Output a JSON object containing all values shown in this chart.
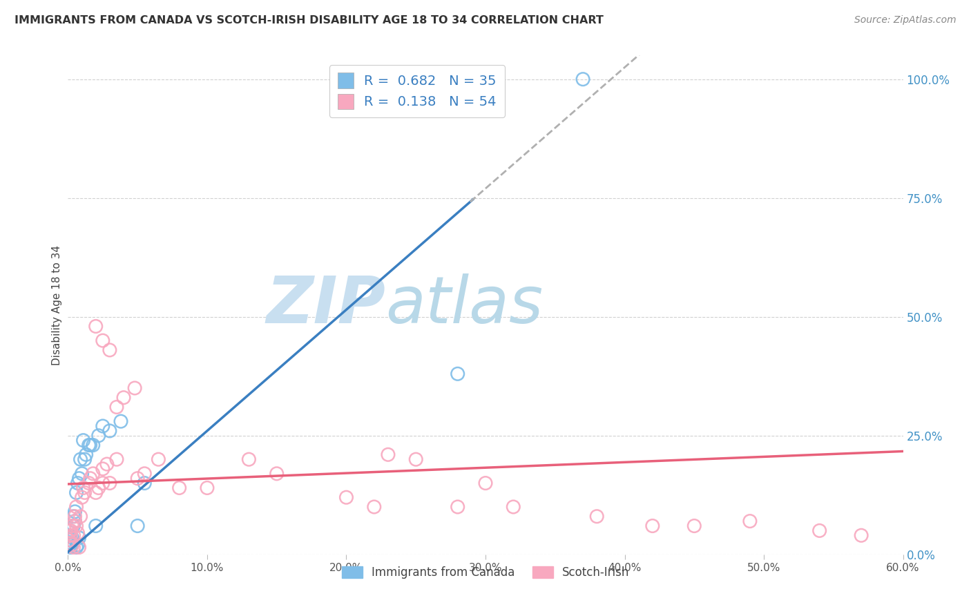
{
  "title": "IMMIGRANTS FROM CANADA VS SCOTCH-IRISH DISABILITY AGE 18 TO 34 CORRELATION CHART",
  "source_text": "Source: ZipAtlas.com",
  "ylabel": "Disability Age 18 to 34",
  "xmin": 0.0,
  "xmax": 0.6,
  "ymin": 0.0,
  "ymax": 1.05,
  "xtick_labels": [
    "0.0%",
    "10.0%",
    "20.0%",
    "30.0%",
    "40.0%",
    "50.0%",
    "60.0%"
  ],
  "xtick_vals": [
    0.0,
    0.1,
    0.2,
    0.3,
    0.4,
    0.5,
    0.6
  ],
  "ytick_labels": [
    "0.0%",
    "25.0%",
    "50.0%",
    "75.0%",
    "100.0%"
  ],
  "ytick_vals": [
    0.0,
    0.25,
    0.5,
    0.75,
    1.0
  ],
  "canada_color": "#7fbde8",
  "scotch_irish_color": "#f8a8bf",
  "canada_R": 0.682,
  "canada_N": 35,
  "scotch_irish_R": 0.138,
  "scotch_irish_N": 54,
  "legend_label_canada": "Immigrants from Canada",
  "legend_label_scotch": "Scotch-Irish",
  "watermark_zip": "ZIP",
  "watermark_atlas": "atlas",
  "watermark_zip_color": "#c8dff0",
  "watermark_atlas_color": "#b8d8e8",
  "canada_line_color": "#3a7fc1",
  "scotch_line_color": "#e8607a",
  "canada_extrapolation_color": "#b0b0b0",
  "canada_line_intercept": 0.005,
  "canada_line_slope": 2.55,
  "scotch_line_intercept": 0.148,
  "scotch_line_slope": 0.115,
  "canada_points_x": [
    0.001,
    0.001,
    0.001,
    0.002,
    0.002,
    0.002,
    0.003,
    0.003,
    0.004,
    0.004,
    0.005,
    0.005,
    0.006,
    0.006,
    0.007,
    0.007,
    0.008,
    0.008,
    0.009,
    0.01,
    0.011,
    0.012,
    0.013,
    0.015,
    0.016,
    0.018,
    0.02,
    0.022,
    0.025,
    0.03,
    0.038,
    0.05,
    0.055,
    0.28,
    0.37
  ],
  "canada_points_y": [
    0.025,
    0.04,
    0.02,
    0.03,
    0.02,
    0.015,
    0.035,
    0.02,
    0.08,
    0.06,
    0.09,
    0.07,
    0.13,
    0.015,
    0.15,
    0.02,
    0.16,
    0.035,
    0.2,
    0.17,
    0.24,
    0.2,
    0.21,
    0.23,
    0.23,
    0.23,
    0.06,
    0.25,
    0.27,
    0.26,
    0.28,
    0.06,
    0.15,
    0.38,
    1.0
  ],
  "scotch_points_x": [
    0.001,
    0.001,
    0.002,
    0.002,
    0.003,
    0.003,
    0.004,
    0.004,
    0.005,
    0.005,
    0.006,
    0.006,
    0.007,
    0.008,
    0.009,
    0.01,
    0.011,
    0.012,
    0.015,
    0.016,
    0.018,
    0.02,
    0.022,
    0.025,
    0.025,
    0.028,
    0.03,
    0.035,
    0.04,
    0.048,
    0.05,
    0.055,
    0.065,
    0.08,
    0.1,
    0.13,
    0.15,
    0.2,
    0.22,
    0.23,
    0.25,
    0.28,
    0.3,
    0.32,
    0.38,
    0.42,
    0.45,
    0.49,
    0.54,
    0.57,
    0.02,
    0.025,
    0.03,
    0.035
  ],
  "scotch_points_y": [
    0.05,
    0.03,
    0.05,
    0.04,
    0.02,
    0.06,
    0.04,
    0.015,
    0.07,
    0.08,
    0.1,
    0.06,
    0.045,
    0.015,
    0.08,
    0.12,
    0.14,
    0.13,
    0.15,
    0.16,
    0.17,
    0.13,
    0.14,
    0.15,
    0.18,
    0.19,
    0.15,
    0.2,
    0.33,
    0.35,
    0.16,
    0.17,
    0.2,
    0.14,
    0.14,
    0.2,
    0.17,
    0.12,
    0.1,
    0.21,
    0.2,
    0.1,
    0.15,
    0.1,
    0.08,
    0.06,
    0.06,
    0.07,
    0.05,
    0.04,
    0.48,
    0.45,
    0.43,
    0.31
  ]
}
